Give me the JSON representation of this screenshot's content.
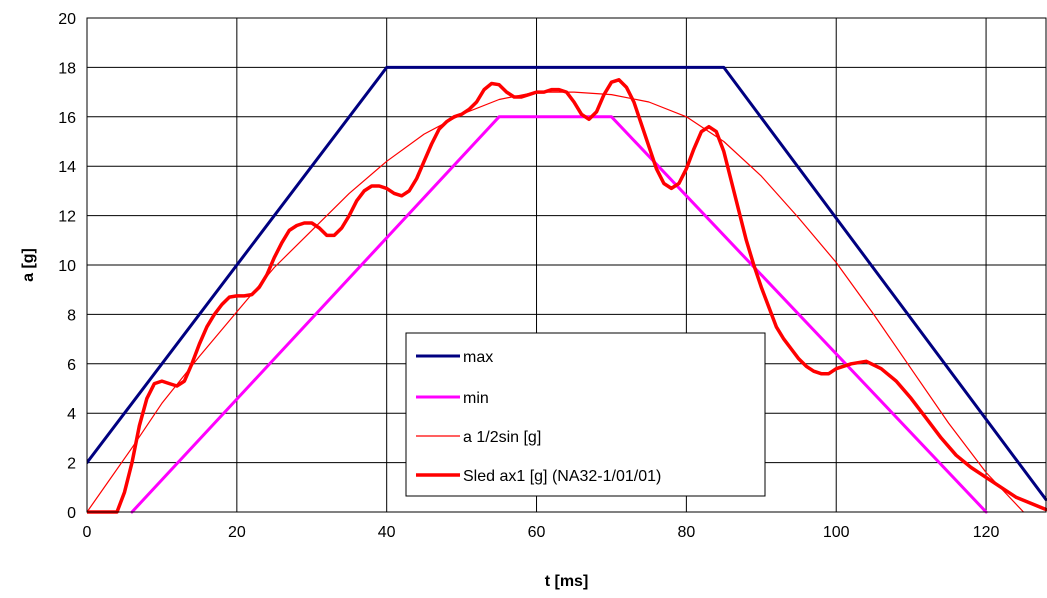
{
  "chart_data": {
    "type": "line",
    "xlabel": "t [ms]",
    "ylabel": "a [g]",
    "xlim": [
      0,
      128
    ],
    "ylim": [
      0,
      20
    ],
    "xticks": [
      0,
      20,
      40,
      60,
      80,
      100,
      120
    ],
    "yticks": [
      0,
      2,
      4,
      6,
      8,
      10,
      12,
      14,
      16,
      18,
      20
    ],
    "grid": true,
    "legend_position": "center",
    "series": [
      {
        "name": "max",
        "color": "#000080",
        "x": [
          0,
          40,
          85,
          128
        ],
        "y": [
          2,
          18,
          18,
          0.5
        ]
      },
      {
        "name": "min",
        "color": "#ff00ff",
        "x": [
          6,
          55,
          70,
          120
        ],
        "y": [
          0,
          16,
          16,
          0
        ]
      },
      {
        "name": "a 1/2sin [g]",
        "color": "#ff0000",
        "x": [
          0,
          3,
          6,
          10,
          15,
          20,
          25,
          30,
          35,
          40,
          45,
          50,
          55,
          60,
          65,
          70,
          75,
          80,
          85,
          90,
          95,
          100,
          105,
          110,
          115,
          120,
          125
        ],
        "y": [
          0,
          1.3,
          2.6,
          4.4,
          6.3,
          8.1,
          9.9,
          11.4,
          12.9,
          14.2,
          15.3,
          16.1,
          16.7,
          17.0,
          17.0,
          16.9,
          16.6,
          16.0,
          15.0,
          13.6,
          11.9,
          10.1,
          8.0,
          5.8,
          3.6,
          1.6,
          0
        ]
      },
      {
        "name": "Sled ax1 [g] (NA32-1/01/01)",
        "color": "#ff0000",
        "x": [
          0,
          2,
          4,
          5,
          6,
          7,
          8,
          9,
          10,
          11,
          12,
          13,
          14,
          15,
          16,
          17,
          18,
          19,
          20,
          21,
          22,
          23,
          24,
          25,
          26,
          27,
          28,
          29,
          30,
          31,
          32,
          33,
          34,
          35,
          36,
          37,
          38,
          39,
          40,
          41,
          42,
          43,
          44,
          45,
          46,
          47,
          48,
          49,
          50,
          51,
          52,
          53,
          54,
          55,
          56,
          57,
          58,
          59,
          60,
          61,
          62,
          63,
          64,
          65,
          66,
          67,
          68,
          69,
          70,
          71,
          72,
          73,
          74,
          75,
          76,
          77,
          78,
          79,
          80,
          81,
          82,
          83,
          84,
          85,
          86,
          87,
          88,
          89,
          90,
          91,
          92,
          93,
          94,
          95,
          96,
          97,
          98,
          99,
          100,
          102,
          104,
          106,
          108,
          110,
          112,
          114,
          116,
          118,
          120,
          122,
          124,
          126,
          128
        ],
        "y": [
          0,
          0,
          0,
          0.8,
          2.0,
          3.5,
          4.6,
          5.2,
          5.3,
          5.2,
          5.1,
          5.3,
          6.0,
          6.8,
          7.5,
          8.0,
          8.4,
          8.7,
          8.75,
          8.75,
          8.8,
          9.1,
          9.6,
          10.3,
          10.9,
          11.4,
          11.6,
          11.7,
          11.7,
          11.5,
          11.2,
          11.2,
          11.5,
          12.0,
          12.6,
          13.0,
          13.2,
          13.2,
          13.1,
          12.9,
          12.8,
          13.0,
          13.5,
          14.2,
          14.9,
          15.5,
          15.8,
          16.0,
          16.1,
          16.3,
          16.6,
          17.1,
          17.35,
          17.3,
          17.0,
          16.8,
          16.8,
          16.9,
          17.0,
          17.0,
          17.1,
          17.1,
          17.0,
          16.6,
          16.1,
          15.9,
          16.2,
          16.9,
          17.4,
          17.5,
          17.2,
          16.6,
          15.7,
          14.8,
          13.9,
          13.3,
          13.1,
          13.3,
          13.9,
          14.7,
          15.4,
          15.6,
          15.4,
          14.6,
          13.4,
          12.2,
          11.0,
          10.0,
          9.1,
          8.3,
          7.5,
          7.0,
          6.6,
          6.2,
          5.9,
          5.7,
          5.6,
          5.6,
          5.8,
          6.0,
          6.1,
          5.8,
          5.3,
          4.6,
          3.8,
          3.0,
          2.3,
          1.8,
          1.4,
          1.0,
          0.6,
          0.35,
          0.1
        ]
      }
    ]
  }
}
